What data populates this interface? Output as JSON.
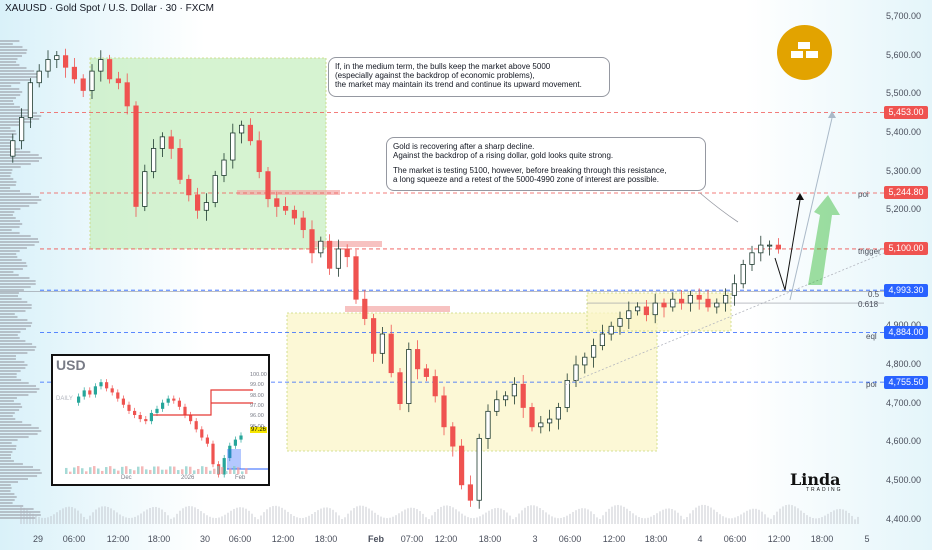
{
  "header": {
    "title": "XAUUSD · Gold Spot / U.S. Dollar · 30 · FXCM"
  },
  "colors": {
    "up": "#26a69a",
    "down": "#ef5350",
    "candle_up": "#1e3a2f",
    "level": "#ef5350",
    "blue": "#2962ff",
    "gold": "#e2a300"
  },
  "callouts": {
    "top": [
      "If, in the medium term, the bulls keep the market above 5000",
      "(especially against the backdrop of economic problems),",
      "the market may maintain its trend and continue its upward movement."
    ],
    "mid_a": [
      "Gold is recovering after a sharp decline.",
      "Against the backdrop of a rising dollar, gold looks quite strong."
    ],
    "mid_b": [
      "The market is testing 5100, however, before breaking through this resistance,",
      "a long squeeze and a retest of the 5000-4990 zone of interest are possible."
    ]
  },
  "level_tags": [
    {
      "label": "5,453.00",
      "color": "#ef5350"
    },
    {
      "label": "5,244.80",
      "color": "#ef5350"
    },
    {
      "label": "5,100.00",
      "color": "#ef5350"
    },
    {
      "label": "4,993.30",
      "color": "#2962ff"
    },
    {
      "label": "4,884.00",
      "color": "#2962ff"
    },
    {
      "label": "4,755.50",
      "color": "#2962ff"
    }
  ],
  "level_names": {
    "poi1": "poi",
    "trigger": "trigger",
    "fib05": "0.5",
    "fib0618": "0.618",
    "eql": "eql",
    "poi2": "poi"
  },
  "inset": {
    "title": "USD",
    "side_label": "DAILY",
    "last_price": "97.26",
    "y_ticks": [
      "100.00",
      "99.00",
      "98.00",
      "97.00",
      "96.00",
      "95.00"
    ],
    "x_ticks": [
      "Dec",
      "2026",
      "Feb"
    ]
  },
  "brand": {
    "name": "Linda",
    "sub": "TRADING"
  },
  "chart_data": {
    "type": "candlestick",
    "title": "XAUUSD · Gold Spot / U.S. Dollar · 30 · FXCM",
    "y_ticks": [
      "5,700.00",
      "5,600.00",
      "5,500.00",
      "5,400.00",
      "5,300.00",
      "5,200.00",
      "4,900.00",
      "4,800.00",
      "4,700.00",
      "4,600.00",
      "4,500.00",
      "4,400.00"
    ],
    "y_tick_values": [
      5700,
      5600,
      5500,
      5400,
      5300,
      5200,
      4900,
      4800,
      4700,
      4600,
      4500,
      4400
    ],
    "ylim": [
      4380,
      5740
    ],
    "x_ticks": [
      "29",
      "06:00",
      "12:00",
      "18:00",
      "30",
      "06:00",
      "12:00",
      "18:00",
      "Feb",
      "07:00",
      "12:00",
      "18:00",
      "3",
      "06:00",
      "12:00",
      "18:00",
      "4",
      "06:00",
      "12:00",
      "18:00",
      "5"
    ],
    "levels": [
      5453.0,
      5244.8,
      5100.0,
      4993.3,
      4884.0,
      4755.5
    ],
    "price_path": [
      5340,
      5380,
      5440,
      5530,
      5560,
      5590,
      5600,
      5570,
      5540,
      5510,
      5560,
      5590,
      5540,
      5530,
      5470,
      5210,
      5300,
      5360,
      5390,
      5360,
      5280,
      5240,
      5200,
      5220,
      5290,
      5330,
      5400,
      5420,
      5380,
      5300,
      5230,
      5210,
      5200,
      5180,
      5150,
      5090,
      5120,
      5050,
      5100,
      5080,
      4970,
      4920,
      4830,
      4880,
      4780,
      4700,
      4840,
      4790,
      4770,
      4720,
      4640,
      4590,
      4490,
      4450,
      4610,
      4680,
      4710,
      4720,
      4750,
      4690,
      4640,
      4650,
      4660,
      4690,
      4760,
      4800,
      4820,
      4850,
      4880,
      4900,
      4920,
      4940,
      4950,
      4930,
      4960,
      4950,
      4970,
      4960,
      4980,
      4970,
      4950,
      4960,
      4980,
      5010,
      5060,
      5090,
      5110,
      5110,
      5100
    ]
  }
}
